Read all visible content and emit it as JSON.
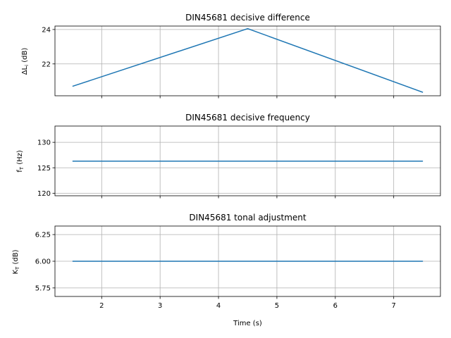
{
  "chart_data": [
    {
      "type": "line",
      "title": "DIN45681 decisive difference",
      "ylabel": "ΔL_i (dB)",
      "ylabel_main": "ΔL",
      "ylabel_sub": "i",
      "ylabel_unit": " (dB)",
      "xlabel": "",
      "xlim": [
        1.2,
        7.8
      ],
      "ylim": [
        20.15,
        24.2
      ],
      "x_ticks": [
        2,
        3,
        4,
        5,
        6,
        7
      ],
      "x_tick_labels": [
        "",
        "",
        "",
        "",
        "",
        ""
      ],
      "y_ticks": [
        22,
        24
      ],
      "y_tick_labels": [
        "22",
        "24"
      ],
      "grid": true,
      "series": [
        {
          "x": [
            1.5,
            4.5,
            7.5
          ],
          "y": [
            20.7,
            24.05,
            20.35
          ]
        }
      ]
    },
    {
      "type": "line",
      "title": "DIN45681 decisive frequency",
      "ylabel": "f_T (Hz)",
      "ylabel_main": "f",
      "ylabel_sub": "T",
      "ylabel_unit": " (Hz)",
      "xlabel": "",
      "xlim": [
        1.2,
        7.8
      ],
      "ylim": [
        119.5,
        133.2
      ],
      "x_ticks": [
        2,
        3,
        4,
        5,
        6,
        7
      ],
      "x_tick_labels": [
        "",
        "",
        "",
        "",
        "",
        ""
      ],
      "y_ticks": [
        120,
        125,
        130
      ],
      "y_tick_labels": [
        "120",
        "125",
        "130"
      ],
      "grid": true,
      "series": [
        {
          "x": [
            1.5,
            7.5
          ],
          "y": [
            126.3,
            126.3
          ]
        }
      ]
    },
    {
      "type": "line",
      "title": "DIN45681 tonal adjustment",
      "ylabel": "K_T (dB)",
      "ylabel_main": "K",
      "ylabel_sub": "T",
      "ylabel_unit": " (dB)",
      "xlabel": "Time (s)",
      "xlim": [
        1.2,
        7.8
      ],
      "ylim": [
        5.67,
        6.33
      ],
      "x_ticks": [
        2,
        3,
        4,
        5,
        6,
        7
      ],
      "x_tick_labels": [
        "2",
        "3",
        "4",
        "5",
        "6",
        "7"
      ],
      "y_ticks": [
        5.75,
        6.0,
        6.25
      ],
      "y_tick_labels": [
        "5.75",
        "6.00",
        "6.25"
      ],
      "grid": true,
      "series": [
        {
          "x": [
            1.5,
            7.5
          ],
          "y": [
            6.0,
            6.0
          ]
        }
      ]
    }
  ],
  "colors": {
    "series": "#1f77b4"
  }
}
